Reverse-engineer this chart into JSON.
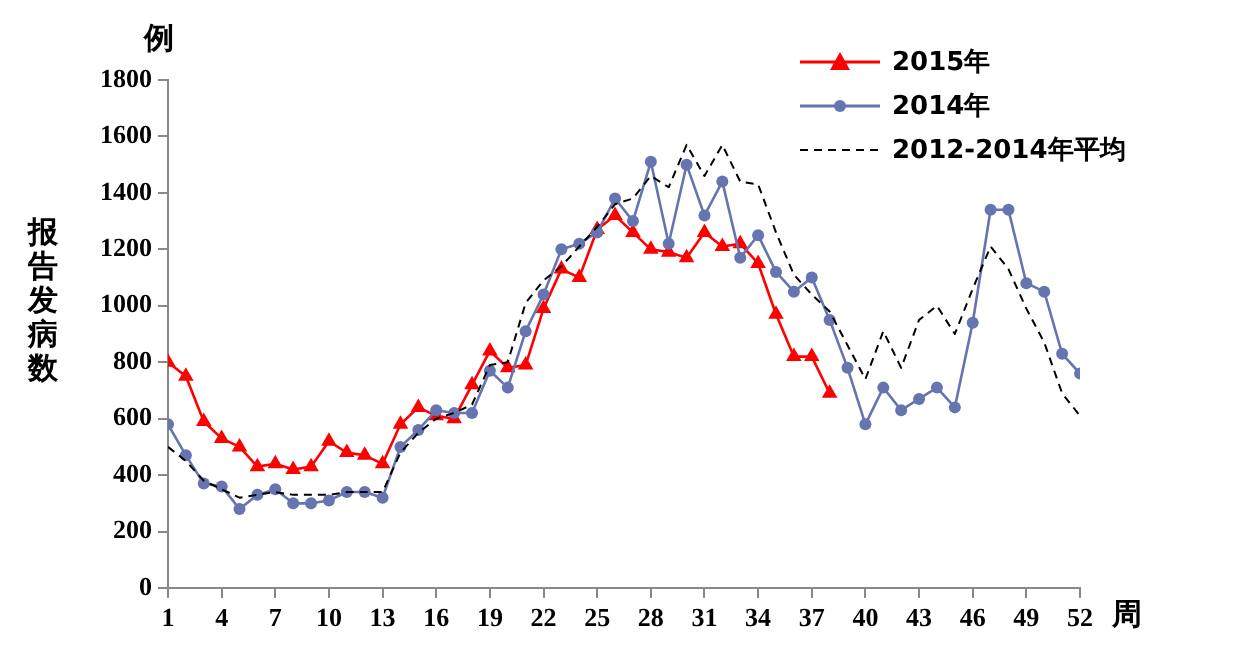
{
  "chart_data": {
    "type": "line",
    "ylabel": "报告发病数",
    "xlabel": "周",
    "annotations": [
      "例"
    ],
    "x": [
      1,
      2,
      3,
      4,
      5,
      6,
      7,
      8,
      9,
      10,
      11,
      12,
      13,
      14,
      15,
      16,
      17,
      18,
      19,
      20,
      21,
      22,
      23,
      24,
      25,
      26,
      27,
      28,
      29,
      30,
      31,
      32,
      33,
      34,
      35,
      36,
      37,
      38,
      39,
      40,
      41,
      42,
      43,
      44,
      45,
      46,
      47,
      48,
      49,
      50,
      51,
      52
    ],
    "xlim": [
      1,
      52
    ],
    "xticks": [
      1,
      4,
      7,
      10,
      13,
      16,
      19,
      22,
      25,
      28,
      31,
      34,
      37,
      40,
      43,
      46,
      49,
      52
    ],
    "ylim": [
      0,
      1800
    ],
    "yticks": [
      0,
      200,
      400,
      600,
      800,
      1000,
      1200,
      1400,
      1600,
      1800
    ],
    "grid": false,
    "legend": "top right",
    "series": [
      {
        "name": "2015年",
        "color": "#ff0000",
        "marker": "triangle",
        "line_style": "solid",
        "values": [
          800,
          750,
          590,
          530,
          500,
          430,
          440,
          420,
          430,
          520,
          480,
          470,
          440,
          580,
          640,
          610,
          600,
          720,
          840,
          780,
          790,
          990,
          1130,
          1100,
          1270,
          1320,
          1260,
          1200,
          1190,
          1170,
          1260,
          1210,
          1220,
          1150,
          970,
          820,
          820,
          690,
          null,
          null,
          null,
          null,
          null,
          null,
          null,
          null,
          null,
          null,
          null,
          null,
          null,
          null
        ]
      },
      {
        "name": "2014年",
        "color": "#6674b0",
        "marker": "circle",
        "line_style": "solid",
        "values": [
          580,
          470,
          370,
          360,
          280,
          330,
          350,
          300,
          300,
          310,
          340,
          340,
          320,
          500,
          560,
          630,
          620,
          620,
          770,
          710,
          910,
          1040,
          1200,
          1220,
          1260,
          1380,
          1300,
          1510,
          1220,
          1500,
          1320,
          1440,
          1170,
          1250,
          1120,
          1050,
          1100,
          950,
          780,
          580,
          710,
          630,
          670,
          710,
          640,
          940,
          1340,
          1340,
          1080,
          1050,
          830,
          760
        ]
      },
      {
        "name": "2012-2014年平均",
        "color": "#000000",
        "marker": "none",
        "line_style": "dashed",
        "values": [
          500,
          450,
          380,
          350,
          320,
          330,
          340,
          330,
          330,
          330,
          340,
          340,
          340,
          480,
          550,
          600,
          620,
          650,
          790,
          800,
          1010,
          1090,
          1140,
          1210,
          1280,
          1360,
          1380,
          1460,
          1420,
          1570,
          1460,
          1570,
          1440,
          1430,
          1260,
          1110,
          1040,
          980,
          860,
          740,
          910,
          780,
          950,
          1000,
          900,
          1060,
          1210,
          1130,
          990,
          870,
          690,
          610
        ]
      }
    ]
  }
}
